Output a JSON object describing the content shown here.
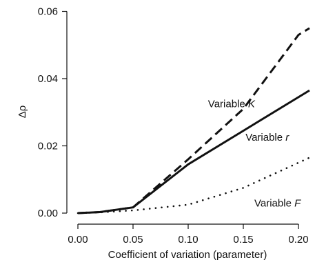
{
  "chart_data": {
    "type": "line",
    "title": "",
    "xlabel": "Coefficient of variation (parameter)",
    "ylabel": "Δρ",
    "xlim": [
      -0.01,
      0.21
    ],
    "ylim": [
      -0.002,
      0.06
    ],
    "xticks": [
      0.0,
      0.05,
      0.1,
      0.15,
      0.2
    ],
    "xtick_labels": [
      "0.00",
      "0.05",
      "0.10",
      "0.15",
      "0.20"
    ],
    "yticks": [
      0.0,
      0.02,
      0.04,
      0.06
    ],
    "ytick_labels": [
      "0.00",
      "0.02",
      "0.04",
      "0.06"
    ],
    "grid": false,
    "legend": "none",
    "series": [
      {
        "style": "dashed",
        "x": [
          0.0,
          0.02,
          0.05,
          0.1,
          0.15,
          0.2,
          0.21
        ],
        "y": [
          0.0,
          0.0003,
          0.0017,
          0.016,
          0.031,
          0.053,
          0.055
        ]
      },
      {
        "style": "solid",
        "x": [
          0.0,
          0.02,
          0.05,
          0.1,
          0.15,
          0.21
        ],
        "y": [
          0.0,
          0.0003,
          0.0017,
          0.0145,
          0.0245,
          0.0365
        ]
      },
      {
        "style": "dotted",
        "x": [
          0.0,
          0.02,
          0.05,
          0.1,
          0.15,
          0.21
        ],
        "y": [
          0.0,
          0.0002,
          0.0008,
          0.0025,
          0.0075,
          0.0165
        ]
      }
    ],
    "annotations": [
      {
        "prefix": "Variable ",
        "italic": "K",
        "x": 0.118,
        "y": 0.0315
      },
      {
        "prefix": "Variable ",
        "italic": "r",
        "x": 0.152,
        "y": 0.0215
      },
      {
        "prefix": "Variable ",
        "italic": "F",
        "x": 0.16,
        "y": 0.002
      }
    ]
  }
}
